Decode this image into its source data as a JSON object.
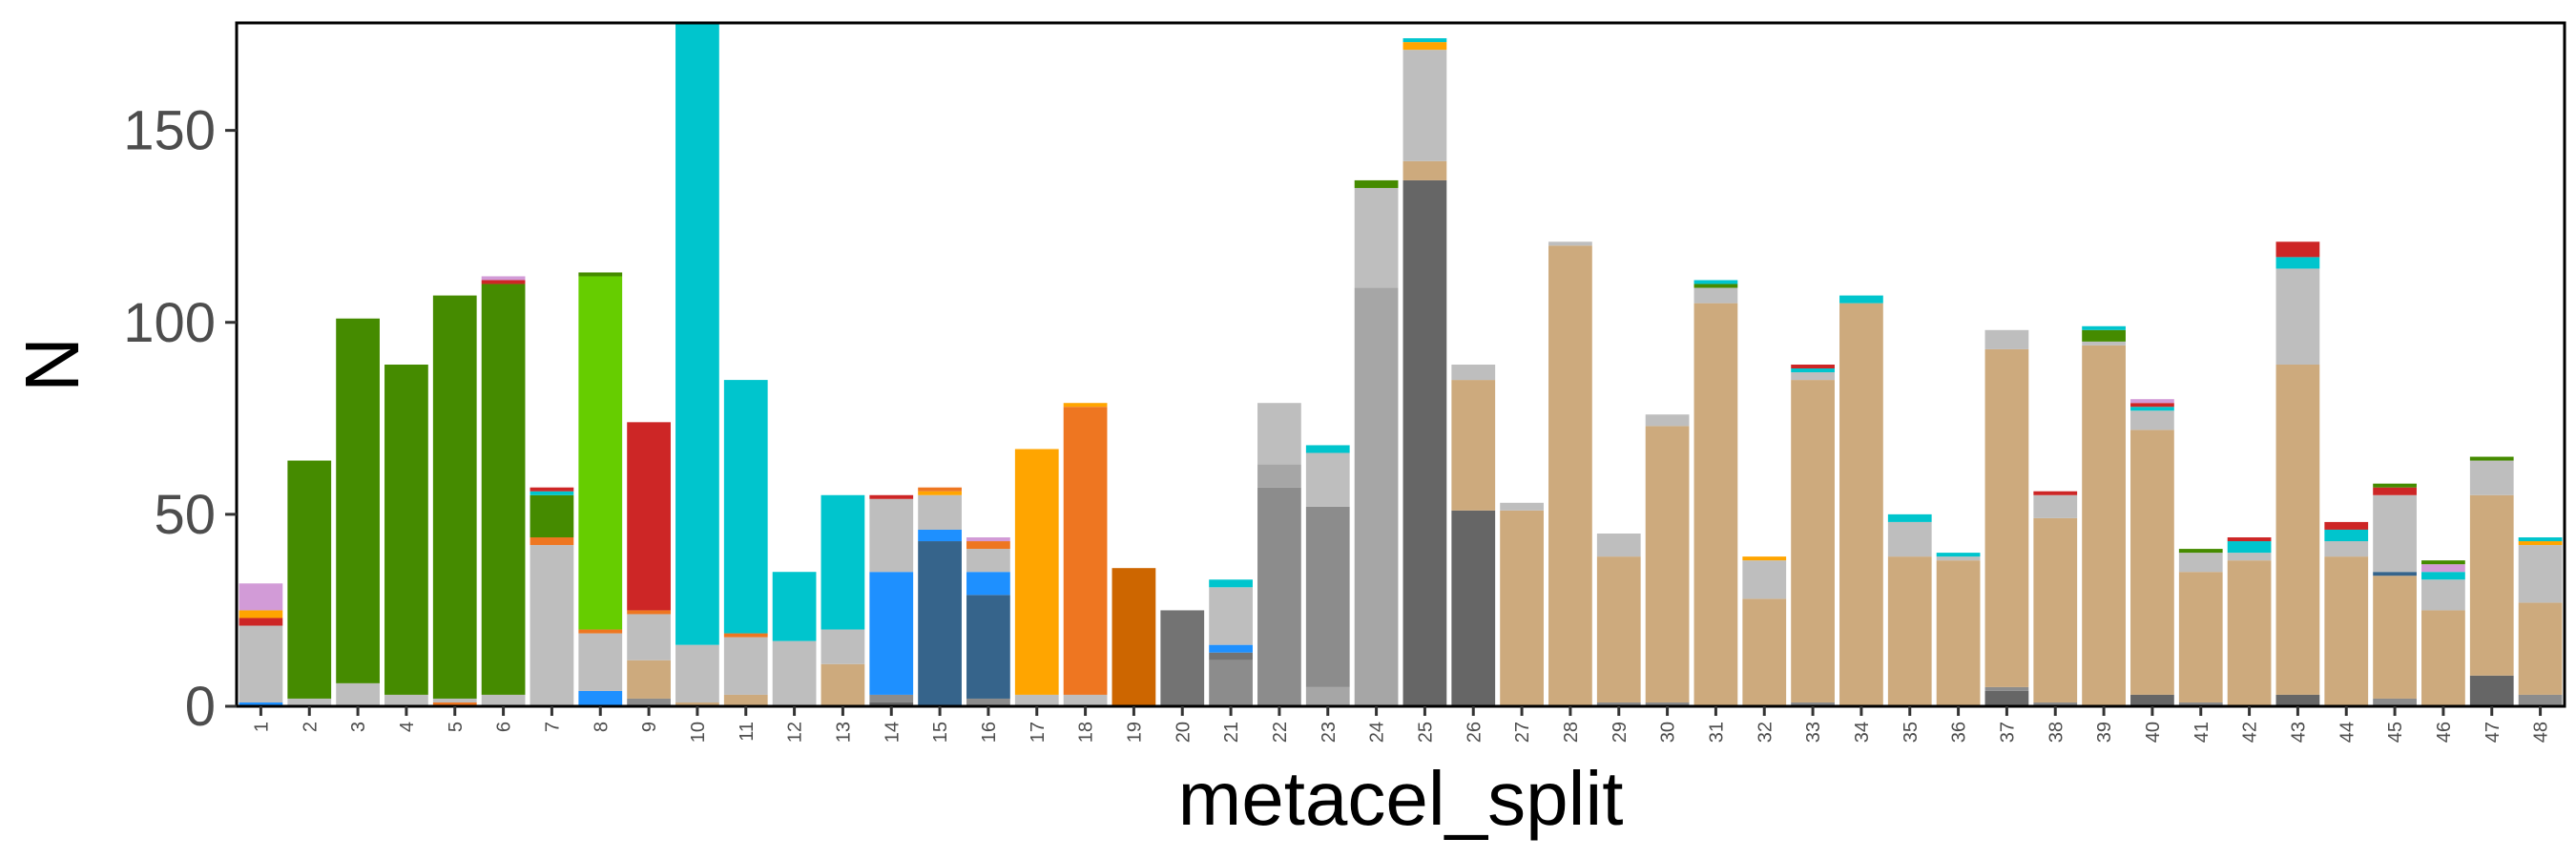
{
  "chart_data": {
    "type": "bar",
    "stacked": true,
    "title": "",
    "xlabel": "metacel_split",
    "ylabel": "N",
    "ylim": [
      0,
      178
    ],
    "yticks": [
      0,
      50,
      100,
      150
    ],
    "ytick_labels": [
      "0",
      "50",
      "100",
      "150"
    ],
    "grid": false,
    "legend": "none",
    "categories": [
      "1",
      "2",
      "3",
      "4",
      "5",
      "6",
      "7",
      "8",
      "9",
      "10",
      "11",
      "12",
      "13",
      "14",
      "15",
      "16",
      "17",
      "18",
      "19",
      "20",
      "21",
      "22",
      "23",
      "24",
      "25",
      "26",
      "27",
      "28",
      "29",
      "30",
      "31",
      "32",
      "33",
      "34",
      "35",
      "36",
      "37",
      "38",
      "39",
      "40",
      "41",
      "42",
      "43",
      "44",
      "45",
      "46",
      "47",
      "48"
    ],
    "colors": {
      "tan": "#cdaa7d",
      "silver": "#bebebe",
      "darkgreen": "#458b00",
      "green": "#66cd00",
      "red": "#cd2626",
      "cyan": "#00c5cd",
      "blue": "#1e90ff",
      "steelblue": "#36648b",
      "orange": "#ffa500",
      "darkorange": "#ee7621",
      "rust": "#cd6600",
      "gray40": "#666666",
      "gray45": "#737373",
      "gray55": "#8c8c8c",
      "gray65": "#a6a6a6",
      "orchid": "#d29bd7"
    },
    "series": [
      {
        "name": "tan",
        "values": [
          2,
          0,
          0,
          0,
          0,
          0,
          0,
          0,
          10,
          1,
          3,
          0,
          11,
          0,
          0,
          0,
          0,
          0,
          0,
          0,
          0,
          0,
          0,
          0,
          5,
          34,
          51,
          120,
          38,
          72,
          105,
          28,
          84,
          105,
          39,
          38,
          88,
          48,
          94,
          69,
          34,
          38,
          86,
          39,
          32,
          25,
          47,
          24
        ]
      },
      {
        "name": "silver",
        "values": [
          20,
          2,
          6,
          3,
          1,
          3,
          42,
          15,
          12,
          15,
          15,
          17,
          9,
          19,
          9,
          6,
          3,
          3,
          0,
          0,
          15,
          16,
          14,
          26,
          29,
          4,
          2,
          1,
          6,
          3,
          4,
          10,
          2,
          0,
          9,
          1,
          5,
          6,
          1,
          5,
          5,
          2,
          25,
          4,
          20,
          8,
          9,
          15
        ]
      },
      {
        "name": "darkgreen",
        "values": [
          0,
          62,
          95,
          86,
          105,
          107,
          11,
          1,
          0,
          0,
          0,
          0,
          0,
          0,
          0,
          0,
          0,
          0,
          0,
          0,
          0,
          0,
          0,
          2,
          0,
          0,
          0,
          0,
          0,
          0,
          1,
          0,
          0,
          0,
          0,
          0,
          0,
          0,
          3,
          0,
          1,
          0,
          0,
          0,
          1,
          1,
          1,
          1
        ]
      },
      {
        "name": "green",
        "values": [
          0,
          0,
          0,
          0,
          0,
          0,
          0,
          92,
          0,
          0,
          0,
          0,
          0,
          0,
          0,
          0,
          0,
          0,
          0,
          0,
          0,
          0,
          0,
          0,
          0,
          0,
          0,
          0,
          0,
          0,
          0,
          0,
          0,
          0,
          0,
          0,
          0,
          0,
          0,
          0,
          0,
          0,
          0,
          0,
          0,
          0,
          0,
          0
        ]
      },
      {
        "name": "red",
        "values": [
          2,
          0,
          0,
          0,
          0,
          1,
          1,
          0,
          49,
          0,
          0,
          0,
          0,
          1,
          0,
          0,
          0,
          0,
          0,
          0,
          0,
          0,
          0,
          0,
          0,
          0,
          0,
          0,
          0,
          0,
          0,
          0,
          1,
          0,
          0,
          0,
          0,
          1,
          0,
          1,
          0,
          1,
          4,
          2,
          2,
          0,
          0,
          0
        ]
      },
      {
        "name": "cyan",
        "values": [
          0,
          0,
          0,
          0,
          0,
          0,
          1,
          0,
          0,
          162,
          66,
          18,
          35,
          0,
          0,
          0,
          0,
          0,
          0,
          0,
          2,
          0,
          2,
          0,
          1,
          0,
          0,
          0,
          0,
          0,
          1,
          0,
          1,
          2,
          2,
          1,
          0,
          0,
          1,
          1,
          0,
          3,
          3,
          3,
          0,
          2,
          0,
          1
        ]
      },
      {
        "name": "blue",
        "values": [
          1,
          0,
          0,
          0,
          0,
          0,
          0,
          4,
          0,
          0,
          0,
          0,
          0,
          32,
          3,
          6,
          0,
          0,
          0,
          0,
          2,
          0,
          0,
          0,
          0,
          0,
          0,
          0,
          0,
          0,
          0,
          0,
          0,
          0,
          0,
          0,
          0,
          0,
          0,
          0,
          0,
          0,
          0,
          0,
          0,
          0,
          0,
          0
        ]
      },
      {
        "name": "steelblue",
        "values": [
          0,
          0,
          0,
          0,
          0,
          0,
          0,
          0,
          0,
          0,
          0,
          0,
          0,
          0,
          43,
          27,
          0,
          0,
          0,
          0,
          0,
          0,
          0,
          0,
          0,
          0,
          0,
          0,
          0,
          0,
          0,
          0,
          0,
          0,
          0,
          0,
          0,
          0,
          0,
          0,
          0,
          0,
          0,
          0,
          1,
          0,
          0,
          0
        ]
      },
      {
        "name": "orange",
        "values": [
          2,
          0,
          0,
          0,
          0,
          0,
          0,
          0,
          0,
          0,
          0,
          0,
          0,
          0,
          1,
          0,
          64,
          1,
          0,
          0,
          0,
          0,
          0,
          0,
          2,
          0,
          0,
          0,
          0,
          0,
          0,
          1,
          0,
          0,
          0,
          0,
          0,
          0,
          0,
          0,
          0,
          0,
          0,
          0,
          0,
          0,
          0,
          1
        ]
      },
      {
        "name": "darkorange",
        "values": [
          0,
          0,
          0,
          0,
          1,
          0,
          2,
          1,
          1,
          0,
          1,
          0,
          0,
          0,
          1,
          2,
          0,
          75,
          0,
          0,
          0,
          0,
          0,
          0,
          0,
          0,
          0,
          0,
          0,
          0,
          0,
          0,
          0,
          0,
          0,
          0,
          0,
          0,
          0,
          0,
          0,
          0,
          0,
          0,
          0,
          0,
          0,
          0
        ]
      },
      {
        "name": "rust",
        "values": [
          0,
          0,
          0,
          0,
          0,
          0,
          0,
          0,
          0,
          0,
          0,
          0,
          0,
          0,
          0,
          0,
          0,
          0,
          36,
          0,
          0,
          0,
          0,
          0,
          0,
          0,
          0,
          0,
          0,
          0,
          0,
          0,
          0,
          0,
          0,
          0,
          0,
          0,
          0,
          0,
          0,
          0,
          0,
          0,
          0,
          0,
          0,
          0
        ]
      },
      {
        "name": "gray40",
        "values": [
          0,
          0,
          0,
          0,
          0,
          0,
          0,
          0,
          0,
          0,
          0,
          0,
          0,
          1,
          0,
          0,
          0,
          0,
          0,
          0,
          0,
          0,
          0,
          0,
          137,
          51,
          0,
          0,
          0,
          0,
          0,
          0,
          0,
          0,
          0,
          0,
          4,
          0,
          0,
          3,
          0,
          0,
          3,
          0,
          0,
          0,
          8,
          0
        ]
      },
      {
        "name": "gray45",
        "values": [
          0,
          0,
          0,
          0,
          0,
          0,
          0,
          0,
          0,
          0,
          0,
          0,
          0,
          0,
          0,
          0,
          0,
          0,
          0,
          25,
          2,
          0,
          0,
          0,
          0,
          0,
          0,
          0,
          0,
          0,
          0,
          0,
          0,
          0,
          0,
          0,
          0,
          0,
          0,
          0,
          0,
          0,
          0,
          0,
          0,
          0,
          0,
          0
        ]
      },
      {
        "name": "gray55",
        "values": [
          0,
          0,
          0,
          0,
          0,
          0,
          0,
          0,
          2,
          0,
          0,
          0,
          0,
          2,
          0,
          2,
          0,
          0,
          0,
          0,
          12,
          57,
          47,
          0,
          0,
          0,
          0,
          0,
          1,
          1,
          0,
          0,
          1,
          0,
          0,
          0,
          1,
          1,
          0,
          0,
          1,
          0,
          0,
          0,
          2,
          0,
          0,
          3
        ]
      },
      {
        "name": "gray65",
        "values": [
          0,
          0,
          0,
          0,
          0,
          0,
          0,
          0,
          0,
          0,
          0,
          0,
          0,
          0,
          0,
          0,
          0,
          0,
          0,
          0,
          0,
          6,
          5,
          109,
          0,
          0,
          0,
          0,
          0,
          0,
          0,
          0,
          0,
          0,
          0,
          0,
          0,
          0,
          0,
          0,
          0,
          0,
          0,
          0,
          0,
          0,
          0,
          0
        ]
      },
      {
        "name": "orchid",
        "values": [
          7,
          0,
          0,
          0,
          0,
          1,
          0,
          0,
          0,
          0,
          0,
          0,
          0,
          0,
          0,
          1,
          0,
          0,
          0,
          0,
          0,
          0,
          0,
          0,
          0,
          0,
          0,
          0,
          0,
          0,
          0,
          0,
          0,
          0,
          0,
          0,
          0,
          0,
          0,
          1,
          0,
          0,
          0,
          0,
          0,
          2,
          0,
          0
        ]
      }
    ],
    "stack_order": [
      [
        "blue",
        "silver",
        "red",
        "orange",
        "orchid"
      ],
      [
        "silver",
        "darkgreen"
      ],
      [
        "silver",
        "darkgreen"
      ],
      [
        "silver",
        "darkgreen"
      ],
      [
        "darkorange",
        "silver",
        "darkgreen"
      ],
      [
        "silver",
        "darkgreen",
        "red",
        "orchid"
      ],
      [
        "silver",
        "darkorange",
        "darkgreen",
        "cyan",
        "red"
      ],
      [
        "blue",
        "silver",
        "darkorange",
        "green",
        "darkgreen"
      ],
      [
        "gray55",
        "tan",
        "silver",
        "darkorange",
        "red"
      ],
      [
        "tan",
        "silver",
        "cyan"
      ],
      [
        "tan",
        "silver",
        "darkorange",
        "cyan"
      ],
      [
        "silver",
        "cyan"
      ],
      [
        "tan",
        "silver",
        "cyan"
      ],
      [
        "gray40",
        "gray55",
        "blue",
        "silver",
        "red"
      ],
      [
        "steelblue",
        "blue",
        "silver",
        "orange",
        "darkorange"
      ],
      [
        "gray55",
        "steelblue",
        "blue",
        "silver",
        "darkorange",
        "orchid"
      ],
      [
        "silver",
        "orange"
      ],
      [
        "silver",
        "darkorange",
        "orange"
      ],
      [
        "rust"
      ],
      [
        "gray45"
      ],
      [
        "gray55",
        "gray45",
        "blue",
        "silver",
        "cyan"
      ],
      [
        "gray55",
        "gray65",
        "silver"
      ],
      [
        "gray65",
        "gray55",
        "tan",
        "silver",
        "cyan"
      ],
      [
        "gray65",
        "tan",
        "silver",
        "darkgreen"
      ],
      [
        "gray40",
        "tan",
        "silver",
        "orange",
        "cyan"
      ],
      [
        "gray40",
        "tan",
        "silver"
      ],
      [
        "tan",
        "silver"
      ],
      [
        "tan",
        "silver"
      ],
      [
        "gray55",
        "tan",
        "silver"
      ],
      [
        "gray55",
        "tan",
        "silver"
      ],
      [
        "tan",
        "silver",
        "darkgreen",
        "cyan"
      ],
      [
        "tan",
        "silver",
        "orange"
      ],
      [
        "gray55",
        "tan",
        "silver",
        "cyan",
        "red"
      ],
      [
        "tan",
        "cyan"
      ],
      [
        "tan",
        "silver",
        "cyan"
      ],
      [
        "tan",
        "silver",
        "cyan"
      ],
      [
        "gray40",
        "gray55",
        "tan",
        "silver"
      ],
      [
        "gray55",
        "tan",
        "silver",
        "red"
      ],
      [
        "tan",
        "silver",
        "darkgreen",
        "cyan"
      ],
      [
        "gray40",
        "tan",
        "silver",
        "cyan",
        "red",
        "orchid"
      ],
      [
        "gray55",
        "tan",
        "silver",
        "darkgreen"
      ],
      [
        "tan",
        "silver",
        "cyan",
        "red"
      ],
      [
        "gray40",
        "tan",
        "silver",
        "cyan",
        "red"
      ],
      [
        "tan",
        "silver",
        "cyan",
        "red"
      ],
      [
        "gray55",
        "tan",
        "steelblue",
        "silver",
        "red",
        "darkgreen"
      ],
      [
        "tan",
        "silver",
        "cyan",
        "orchid",
        "darkgreen"
      ],
      [
        "gray40",
        "tan",
        "silver",
        "darkgreen"
      ],
      [
        "gray55",
        "tan",
        "silver",
        "orange",
        "cyan"
      ]
    ]
  }
}
